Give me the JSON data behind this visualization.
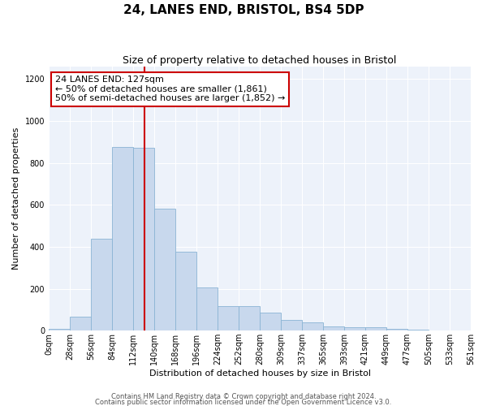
{
  "title": "24, LANES END, BRISTOL, BS4 5DP",
  "subtitle": "Size of property relative to detached houses in Bristol",
  "xlabel": "Distribution of detached houses by size in Bristol",
  "ylabel": "Number of detached properties",
  "bin_labels": [
    "0sqm",
    "28sqm",
    "56sqm",
    "84sqm",
    "112sqm",
    "140sqm",
    "168sqm",
    "196sqm",
    "224sqm",
    "252sqm",
    "280sqm",
    "309sqm",
    "337sqm",
    "365sqm",
    "393sqm",
    "421sqm",
    "449sqm",
    "477sqm",
    "505sqm",
    "533sqm",
    "561sqm"
  ],
  "bar_values": [
    10,
    65,
    440,
    875,
    870,
    580,
    375,
    205,
    115,
    115,
    85,
    50,
    38,
    20,
    15,
    15,
    10,
    5,
    0,
    0,
    0
  ],
  "bar_color": "#c8d8ed",
  "bar_edge_color": "#8ab4d4",
  "vline_x": 127,
  "vline_label": "24 LANES END: 127sqm",
  "annotation_line1": "← 50% of detached houses are smaller (1,861)",
  "annotation_line2": "50% of semi-detached houses are larger (1,852) →",
  "annotation_box_color": "#ffffff",
  "annotation_box_edge": "#cc0000",
  "vline_color": "#cc0000",
  "ylim": [
    0,
    1260
  ],
  "yticks": [
    0,
    200,
    400,
    600,
    800,
    1000,
    1200
  ],
  "bin_width": 28,
  "footer1": "Contains HM Land Registry data © Crown copyright and database right 2024.",
  "footer2": "Contains public sector information licensed under the Open Government Licence v3.0.",
  "bg_color": "#ffffff",
  "plot_bg_color": "#edf2fa",
  "grid_color": "#ffffff",
  "title_fontsize": 11,
  "subtitle_fontsize": 9,
  "axis_label_fontsize": 8,
  "tick_fontsize": 7,
  "footer_fontsize": 6,
  "annot_fontsize": 8
}
